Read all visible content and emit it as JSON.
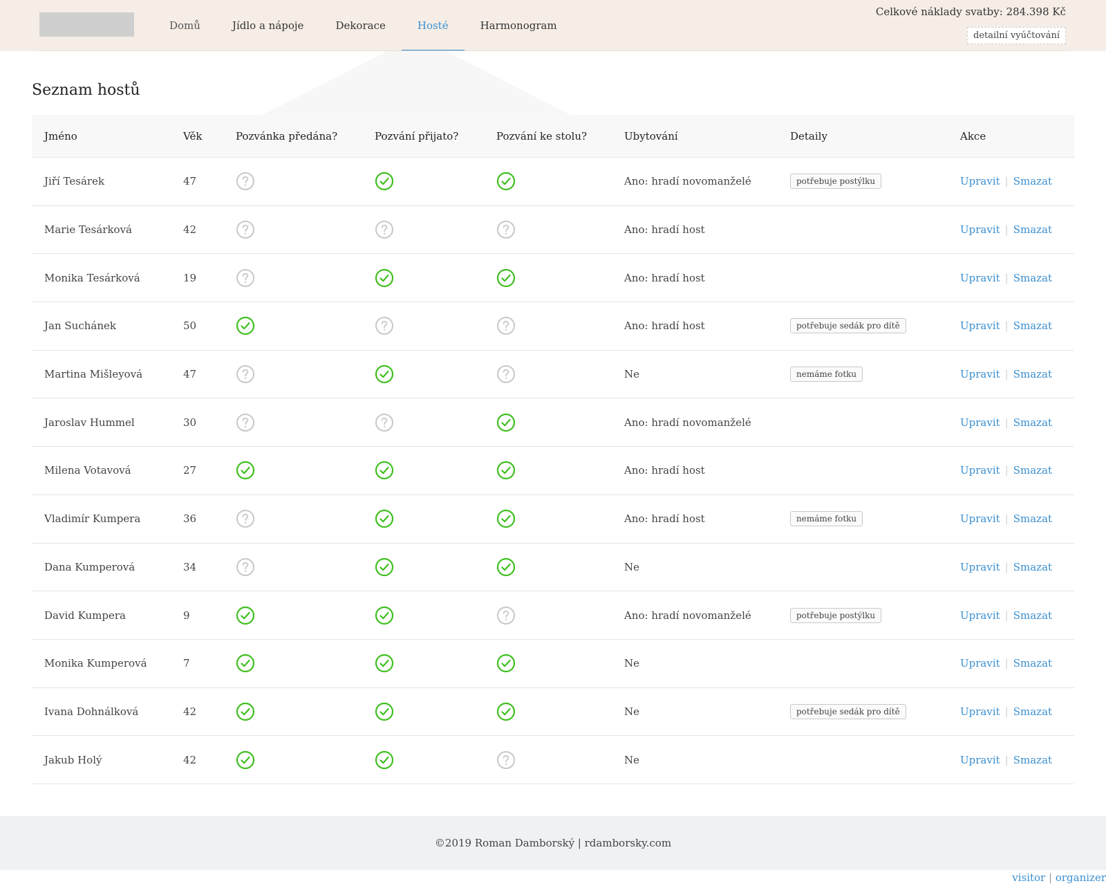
{
  "nav": {
    "items": [
      "Domů",
      "Jídlo a nápoje",
      "Dekorace",
      "Hosté",
      "Harmonogram"
    ],
    "active_index": 3
  },
  "header": {
    "totals_label": "Celkové náklady svatby: 284.398 Kč",
    "detail_button": "detailní vyúčtování"
  },
  "page": {
    "title": "Seznam hostů"
  },
  "table": {
    "columns": [
      "Jméno",
      "Věk",
      "Pozvánka předána?",
      "Pozvání přijato?",
      "Pozvání ke stolu?",
      "Ubytování",
      "Detaily",
      "Akce"
    ],
    "rows": [
      {
        "name": "Jiří Tesárek",
        "age": "47",
        "invite_delivered": false,
        "invite_accepted": true,
        "table_invite": true,
        "lodging": "Ano: hradí novomanželé",
        "detail": "potřebuje postýlku"
      },
      {
        "name": "Marie Tesárková",
        "age": "42",
        "invite_delivered": false,
        "invite_accepted": false,
        "table_invite": false,
        "lodging": "Ano: hradí host",
        "detail": ""
      },
      {
        "name": "Monika Tesárková",
        "age": "19",
        "invite_delivered": false,
        "invite_accepted": true,
        "table_invite": true,
        "lodging": "Ano: hradí host",
        "detail": ""
      },
      {
        "name": "Jan Suchánek",
        "age": "50",
        "invite_delivered": true,
        "invite_accepted": false,
        "table_invite": false,
        "lodging": "Ano: hradí host",
        "detail": "potřebuje sedák pro dítě"
      },
      {
        "name": "Martina Mišleyová",
        "age": "47",
        "invite_delivered": false,
        "invite_accepted": true,
        "table_invite": false,
        "lodging": "Ne",
        "detail": "nemáme fotku"
      },
      {
        "name": "Jaroslav Hummel",
        "age": "30",
        "invite_delivered": false,
        "invite_accepted": false,
        "table_invite": true,
        "lodging": "Ano: hradí novomanželé",
        "detail": ""
      },
      {
        "name": "Milena Votavová",
        "age": "27",
        "invite_delivered": true,
        "invite_accepted": true,
        "table_invite": true,
        "lodging": "Ano: hradí host",
        "detail": ""
      },
      {
        "name": "Vladimír Kumpera",
        "age": "36",
        "invite_delivered": false,
        "invite_accepted": true,
        "table_invite": true,
        "lodging": "Ano: hradí host",
        "detail": "nemáme fotku"
      },
      {
        "name": "Dana Kumperová",
        "age": "34",
        "invite_delivered": false,
        "invite_accepted": true,
        "table_invite": true,
        "lodging": "Ne",
        "detail": ""
      },
      {
        "name": "David Kumpera",
        "age": "9",
        "invite_delivered": true,
        "invite_accepted": true,
        "table_invite": false,
        "lodging": "Ano: hradí novomanželé",
        "detail": "potřebuje postýlku"
      },
      {
        "name": "Monika Kumperová",
        "age": "7",
        "invite_delivered": true,
        "invite_accepted": true,
        "table_invite": true,
        "lodging": "Ne",
        "detail": ""
      },
      {
        "name": "Ivana Dohnálková",
        "age": "42",
        "invite_delivered": true,
        "invite_accepted": true,
        "table_invite": true,
        "lodging": "Ne",
        "detail": "potřebuje sedák pro dítě"
      },
      {
        "name": "Jakub Holý",
        "age": "42",
        "invite_delivered": true,
        "invite_accepted": true,
        "table_invite": false,
        "lodging": "Ne",
        "detail": ""
      }
    ],
    "actions": {
      "edit": "Upravit",
      "delete": "Smazat",
      "separator": "|"
    }
  },
  "status_icons": {
    "yes": "check-circle-icon",
    "unknown": "question-circle-icon"
  },
  "colors": {
    "accent": "#3a8fd0",
    "check": "#3fbf1f",
    "unknown": "#c8c8c8",
    "header_bg": "#f5ede6",
    "footer_bg": "#eff1f4"
  },
  "footer": {
    "copyright": "©2019 Roman Damborský | rdamborsky.com",
    "role_visitor": "visitor",
    "role_separator": "|",
    "role_organizer": "organizer"
  }
}
